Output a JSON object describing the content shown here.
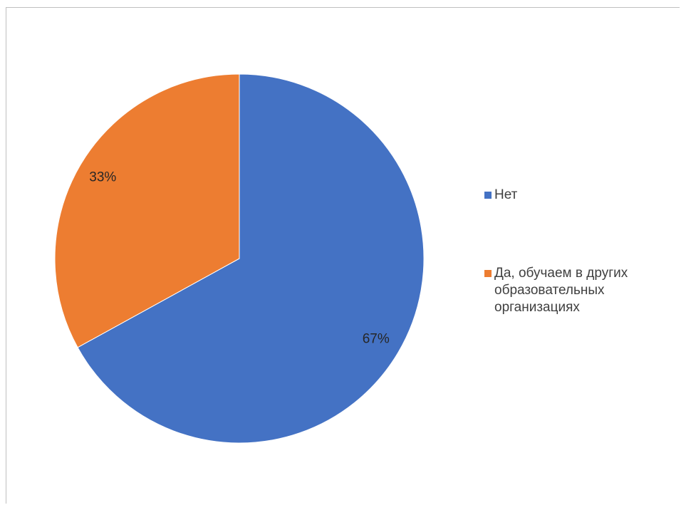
{
  "chart_data": {
    "type": "pie",
    "slices": [
      {
        "name": "Нет",
        "value": 67,
        "label": "67%",
        "color": "#4472c4"
      },
      {
        "name": "Да, обучаем в других образовательных организациях",
        "value": 33,
        "label": "33%",
        "color": "#ed7d31"
      }
    ],
    "legend": {
      "position": "right",
      "items": [
        {
          "label": "Нет",
          "color": "#4472c4"
        },
        {
          "label": "Да, обучаем в других\nобразовательных\nорганизациях",
          "color": "#ed7d31"
        }
      ]
    }
  }
}
